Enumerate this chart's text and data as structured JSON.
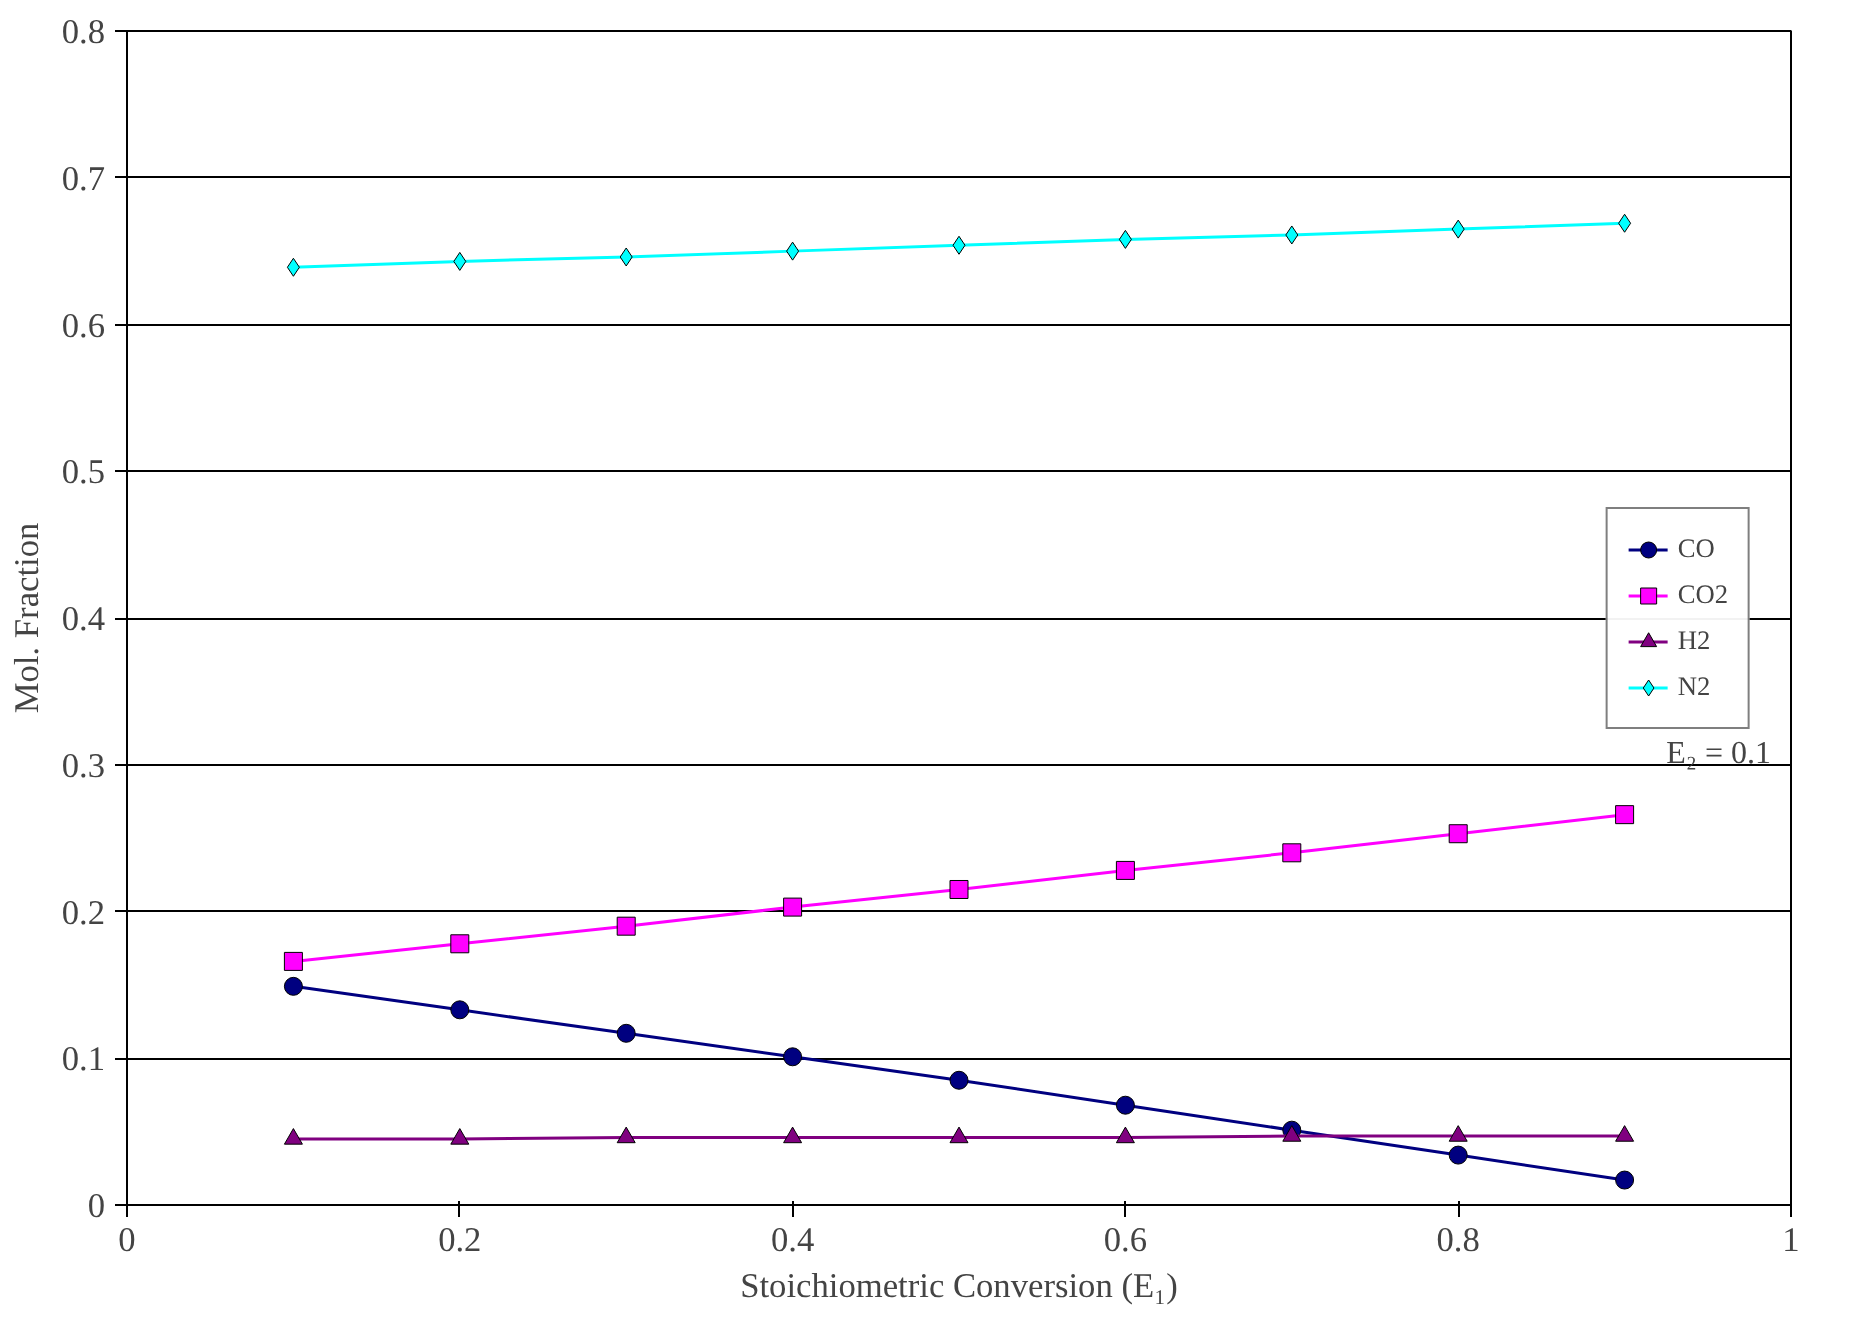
{
  "chart_data": {
    "type": "line",
    "xlabel": "Stoichiometric Conversion (E₁)",
    "ylabel": "Mol. Fraction",
    "x": [
      0.1,
      0.2,
      0.3,
      0.4,
      0.5,
      0.6,
      0.7,
      0.8,
      0.9
    ],
    "series": [
      {
        "name": "CO",
        "color": "#000080",
        "marker": "circle",
        "values": [
          0.149,
          0.133,
          0.117,
          0.101,
          0.085,
          0.068,
          0.051,
          0.034,
          0.017
        ]
      },
      {
        "name": "CO2",
        "color": "#ff00ff",
        "marker": "square",
        "values": [
          0.166,
          0.178,
          0.19,
          0.203,
          0.215,
          0.228,
          0.24,
          0.253,
          0.266
        ]
      },
      {
        "name": "H2",
        "color": "#800080",
        "marker": "triangle",
        "values": [
          0.045,
          0.045,
          0.046,
          0.046,
          0.046,
          0.046,
          0.047,
          0.047,
          0.047
        ]
      },
      {
        "name": "N2",
        "color": "#00ffff",
        "marker": "diamond",
        "values": [
          0.639,
          0.643,
          0.646,
          0.65,
          0.654,
          0.658,
          0.661,
          0.665,
          0.669
        ]
      }
    ],
    "xlim": [
      0,
      1
    ],
    "xticks": [
      0,
      0.2,
      0.4,
      0.6,
      0.8,
      1
    ],
    "ylim": [
      0,
      0.8
    ],
    "yticks": [
      0,
      0.1,
      0.2,
      0.3,
      0.4,
      0.5,
      0.6,
      0.7,
      0.8
    ],
    "grid": "y",
    "legend": "right",
    "line_style": "solid",
    "annotations": [
      "E₂ = 0.1"
    ]
  }
}
